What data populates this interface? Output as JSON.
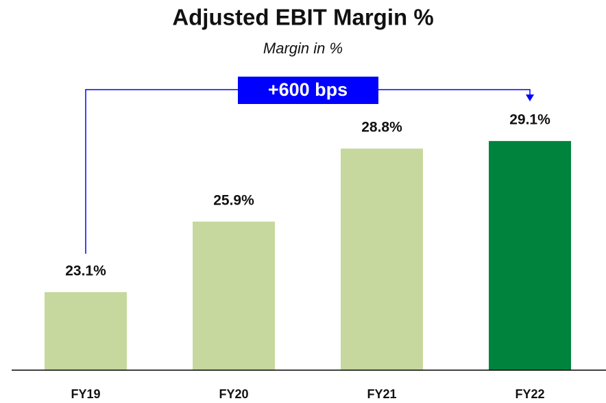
{
  "chart_data": {
    "type": "bar",
    "title": "Adjusted EBIT Margin %",
    "subtitle": "Margin in %",
    "categories": [
      "FY19",
      "FY20",
      "FY21",
      "FY22"
    ],
    "values": [
      23.1,
      25.9,
      28.8,
      29.1
    ],
    "value_labels": [
      "23.1%",
      "25.9%",
      "28.8%",
      "29.1%"
    ],
    "colors": [
      "#c6d89e",
      "#c6d89e",
      "#c6d89e",
      "#00843d"
    ],
    "ylim": [
      20,
      30
    ],
    "annotation": "+600 bps"
  }
}
